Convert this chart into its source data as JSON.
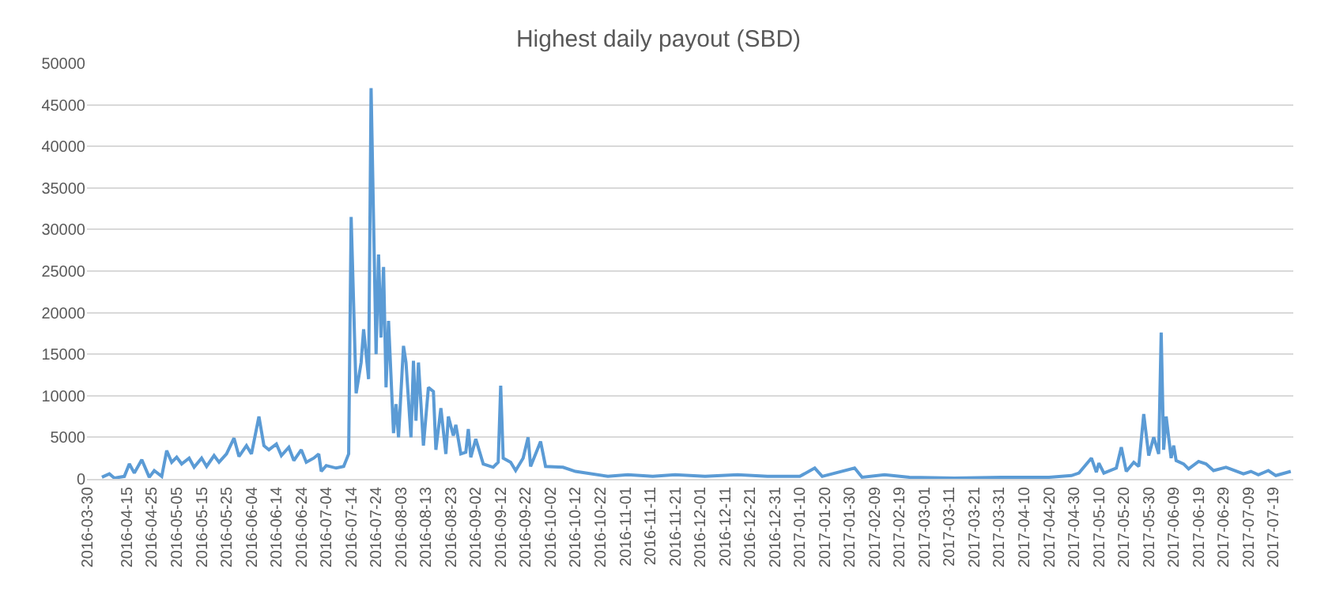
{
  "chart_data": {
    "type": "line",
    "title": "Highest daily payout (SBD)",
    "x": [
      "2016-04-05",
      "2016-04-08",
      "2016-04-10",
      "2016-04-14",
      "2016-04-16",
      "2016-04-18",
      "2016-04-21",
      "2016-04-24",
      "2016-04-26",
      "2016-04-29",
      "2016-05-01",
      "2016-05-03",
      "2016-05-05",
      "2016-05-07",
      "2016-05-10",
      "2016-05-12",
      "2016-05-15",
      "2016-05-17",
      "2016-05-20",
      "2016-05-22",
      "2016-05-25",
      "2016-05-28",
      "2016-05-30",
      "2016-06-02",
      "2016-06-04",
      "2016-06-07",
      "2016-06-09",
      "2016-06-11",
      "2016-06-14",
      "2016-06-16",
      "2016-06-19",
      "2016-06-21",
      "2016-06-24",
      "2016-06-26",
      "2016-06-29",
      "2016-07-01",
      "2016-07-02",
      "2016-07-04",
      "2016-07-08",
      "2016-07-11",
      "2016-07-13",
      "2016-07-14",
      "2016-07-16",
      "2016-07-18",
      "2016-07-19",
      "2016-07-21",
      "2016-07-22",
      "2016-07-24",
      "2016-07-25",
      "2016-07-26",
      "2016-07-27",
      "2016-07-28",
      "2016-07-29",
      "2016-07-31",
      "2016-08-01",
      "2016-08-02",
      "2016-08-04",
      "2016-08-05",
      "2016-08-07",
      "2016-08-08",
      "2016-08-09",
      "2016-08-10",
      "2016-08-12",
      "2016-08-14",
      "2016-08-16",
      "2016-08-17",
      "2016-08-19",
      "2016-08-21",
      "2016-08-22",
      "2016-08-24",
      "2016-08-25",
      "2016-08-27",
      "2016-08-29",
      "2016-08-30",
      "2016-08-31",
      "2016-09-02",
      "2016-09-05",
      "2016-09-09",
      "2016-09-11",
      "2016-09-12",
      "2016-09-13",
      "2016-09-16",
      "2016-09-18",
      "2016-09-21",
      "2016-09-23",
      "2016-09-24",
      "2016-09-28",
      "2016-09-30",
      "2016-10-07",
      "2016-10-12",
      "2016-10-25",
      "2016-11-02",
      "2016-11-12",
      "2016-11-21",
      "2016-12-03",
      "2016-12-16",
      "2016-12-28",
      "2017-01-10",
      "2017-01-16",
      "2017-01-19",
      "2017-02-01",
      "2017-02-04",
      "2017-02-13",
      "2017-02-23",
      "2017-03-13",
      "2017-04-01",
      "2017-04-20",
      "2017-04-29",
      "2017-05-02",
      "2017-05-07",
      "2017-05-09",
      "2017-05-10",
      "2017-05-12",
      "2017-05-17",
      "2017-05-19",
      "2017-05-21",
      "2017-05-24",
      "2017-05-26",
      "2017-05-28",
      "2017-05-30",
      "2017-06-01",
      "2017-06-03",
      "2017-06-04",
      "2017-06-05",
      "2017-06-06",
      "2017-06-08",
      "2017-06-09",
      "2017-06-10",
      "2017-06-13",
      "2017-06-15",
      "2017-06-19",
      "2017-06-22",
      "2017-06-25",
      "2017-06-30",
      "2017-07-07",
      "2017-07-10",
      "2017-07-13",
      "2017-07-17",
      "2017-07-20",
      "2017-07-26"
    ],
    "series": [
      {
        "color": "#5b9bd5",
        "values": [
          200,
          600,
          100,
          300,
          1800,
          700,
          2300,
          200,
          1000,
          300,
          3400,
          2000,
          2600,
          1800,
          2500,
          1400,
          2500,
          1500,
          2800,
          2000,
          3000,
          4900,
          2700,
          4000,
          3000,
          7500,
          4000,
          3500,
          4200,
          2800,
          3800,
          2200,
          3500,
          2000,
          2500,
          3000,
          900,
          1600,
          1300,
          1500,
          3000,
          31500,
          10300,
          14000,
          18000,
          12000,
          47000,
          15000,
          27000,
          17000,
          25500,
          11000,
          19000,
          5500,
          9000,
          5000,
          16000,
          14000,
          5000,
          14200,
          7000,
          14000,
          4000,
          11000,
          10500,
          3500,
          8500,
          3000,
          7500,
          5200,
          6500,
          3000,
          3200,
          6000,
          2600,
          4800,
          1800,
          1400,
          2000,
          11200,
          2500,
          2000,
          1000,
          2500,
          5000,
          1500,
          4500,
          1500,
          1400,
          900,
          300,
          500,
          300,
          500,
          300,
          500,
          300,
          300,
          1300,
          300,
          1300,
          200,
          500,
          200,
          100,
          200,
          200,
          400,
          700,
          2500,
          800,
          1900,
          700,
          1300,
          3800,
          900,
          2000,
          1500,
          7800,
          2800,
          5000,
          3000,
          17600,
          3500,
          7500,
          2500,
          4000,
          2200,
          1800,
          1200,
          2100,
          1800,
          1000,
          1400,
          600,
          900,
          500,
          1000,
          400,
          900
        ]
      }
    ],
    "xlim": [
      "2016-03-30",
      "2017-07-27"
    ],
    "xticks": [
      "2016-03-30",
      "2016-04-15",
      "2016-04-25",
      "2016-05-05",
      "2016-05-15",
      "2016-05-25",
      "2016-06-04",
      "2016-06-14",
      "2016-06-24",
      "2016-07-04",
      "2016-07-14",
      "2016-07-24",
      "2016-08-03",
      "2016-08-13",
      "2016-08-23",
      "2016-09-02",
      "2016-09-12",
      "2016-09-22",
      "2016-10-02",
      "2016-10-12",
      "2016-10-22",
      "2016-11-01",
      "2016-11-11",
      "2016-11-21",
      "2016-12-01",
      "2016-12-11",
      "2016-12-21",
      "2016-12-31",
      "2017-01-10",
      "2017-01-20",
      "2017-01-30",
      "2017-02-09",
      "2017-02-19",
      "2017-03-01",
      "2017-03-11",
      "2017-03-21",
      "2017-03-31",
      "2017-04-10",
      "2017-04-20",
      "2017-04-30",
      "2017-05-10",
      "2017-05-20",
      "2017-05-30",
      "2017-06-09",
      "2017-06-19",
      "2017-06-29",
      "2017-07-09",
      "2017-07-19"
    ],
    "ylim": [
      0,
      50000
    ],
    "yticks": [
      0,
      5000,
      10000,
      15000,
      20000,
      25000,
      30000,
      35000,
      40000,
      45000,
      50000
    ],
    "grid": "y",
    "marker": "none",
    "line_style": "solid"
  }
}
